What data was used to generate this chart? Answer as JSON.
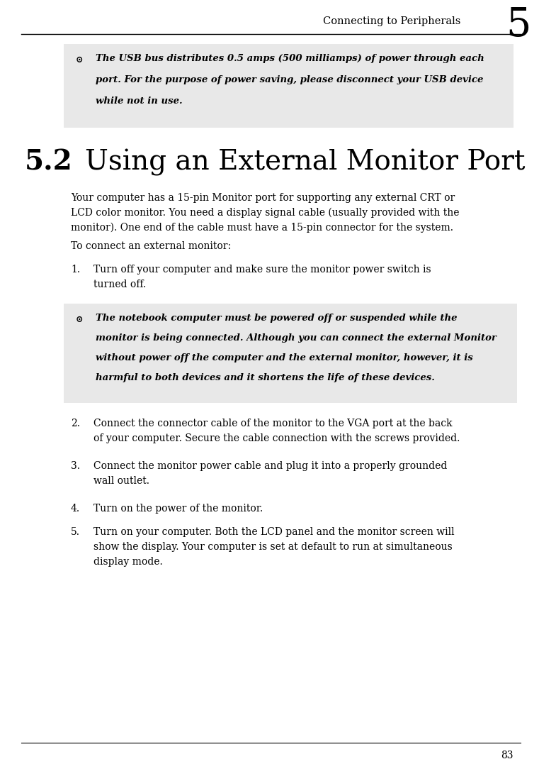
{
  "page_bg": "#ffffff",
  "header_text": "Connecting to Peripherals",
  "header_number": "5",
  "note_box1_bg": "#e8e8e8",
  "note_box1_icon": "⊙",
  "note_box1_text_line1": "The USB bus distributes 0.5 amps (500 milliamps) of power through each",
  "note_box1_text_line2": "port. For the purpose of power saving, please disconnect your USB device",
  "note_box1_text_line3": "while not in use.",
  "section_number": "5.2",
  "section_title": "Using an External Monitor Port",
  "body_para1_line1": "Your computer has a 15-pin Monitor port for supporting any external CRT or",
  "body_para1_line2": "LCD color monitor. You need a display signal cable (usually provided with the",
  "body_para1_line3": "monitor). One end of the cable must have a 15-pin connector for the system.",
  "body_para2": "To connect an external monitor:",
  "list1_num": "1.",
  "list1_line1": "Turn off your computer and make sure the monitor power switch is",
  "list1_line2": "turned off.",
  "note_box2_bg": "#e8e8e8",
  "note_box2_icon": "⊙",
  "note_box2_text_line1": "The notebook computer must be powered off or suspended while the",
  "note_box2_text_line2": "monitor is being connected. Although you can connect the external Monitor",
  "note_box2_text_line3": "without power off the computer and the external monitor, however, it is",
  "note_box2_text_line4": "harmful to both devices and it shortens the life of these devices.",
  "list2_num": "2.",
  "list2_line1": "Connect the connector cable of the monitor to the VGA port at the back",
  "list2_line2": "of your computer. Secure the cable connection with the screws provided.",
  "list3_num": "3.",
  "list3_line1": "Connect the monitor power cable and plug it into a properly grounded",
  "list3_line2": "wall outlet.",
  "list4_num": "4.",
  "list4_line1": "Turn on the power of the monitor.",
  "list5_num": "5.",
  "list5_line1": "Turn on your computer. Both the LCD panel and the monitor screen will",
  "list5_line2": "show the display. Your computer is set at default to run at simultaneous",
  "list5_line3": "display mode.",
  "footer_number": "83",
  "text_color": "#000000",
  "note_text_color": "#000000"
}
